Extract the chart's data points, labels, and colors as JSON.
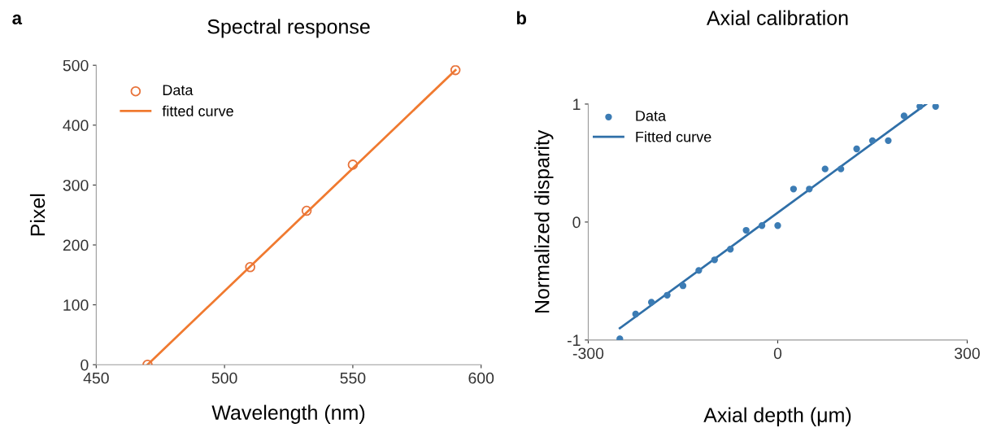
{
  "chart_data": [
    {
      "type": "scatter",
      "title": "Spectral response",
      "xlabel": "Wavelength (nm)",
      "ylabel": "Pixel",
      "annotations": [
        "a"
      ],
      "xlim": [
        450,
        600
      ],
      "xticks": [
        450,
        500,
        550,
        600
      ],
      "ylim": [
        0,
        500
      ],
      "yticks": [
        0,
        100,
        200,
        300,
        400,
        500
      ],
      "grid": false,
      "legend": "top left",
      "x": [
        470,
        510,
        532,
        550,
        590
      ],
      "series": [
        {
          "name": "Data",
          "marker": "circle",
          "color": "#e8733a",
          "values": [
            0,
            163,
            257,
            334,
            492
          ]
        },
        {
          "name": "fitted curve",
          "type": "line",
          "marker": "none",
          "line_style": "solid",
          "color": "#f07a30",
          "x": [
            470,
            590
          ],
          "values": [
            0,
            492
          ]
        }
      ]
    },
    {
      "type": "scatter",
      "title": "Axial calibration",
      "xlabel": "Axial depth (μm)",
      "ylabel": "Normalized disparity",
      "annotations": [
        "b"
      ],
      "xlim": [
        -300,
        300
      ],
      "xticks": [
        -300,
        0,
        300
      ],
      "ylim": [
        -1,
        1
      ],
      "yticks": [
        -1,
        0,
        1
      ],
      "grid": false,
      "legend": "top left",
      "x": [
        -250,
        -225,
        -200,
        -175,
        -150,
        -125,
        -100,
        -75,
        -50,
        -25,
        0,
        25,
        50,
        75,
        100,
        125,
        150,
        175,
        200,
        225,
        250
      ],
      "series": [
        {
          "name": "Data",
          "marker": "circle",
          "color": "#3c7cb4",
          "values": [
            -0.99,
            -0.78,
            -0.68,
            -0.62,
            -0.54,
            -0.41,
            -0.32,
            -0.23,
            -0.07,
            -0.03,
            -0.03,
            0.28,
            0.28,
            0.45,
            0.45,
            0.62,
            0.69,
            0.69,
            0.9,
            0.98,
            0.98
          ]
        },
        {
          "name": "Fitted curve",
          "type": "line",
          "marker": "none",
          "line_style": "solid",
          "color": "#2f6fa8",
          "x": [
            -250,
            235
          ],
          "values": [
            -0.9,
            1
          ]
        }
      ]
    }
  ]
}
